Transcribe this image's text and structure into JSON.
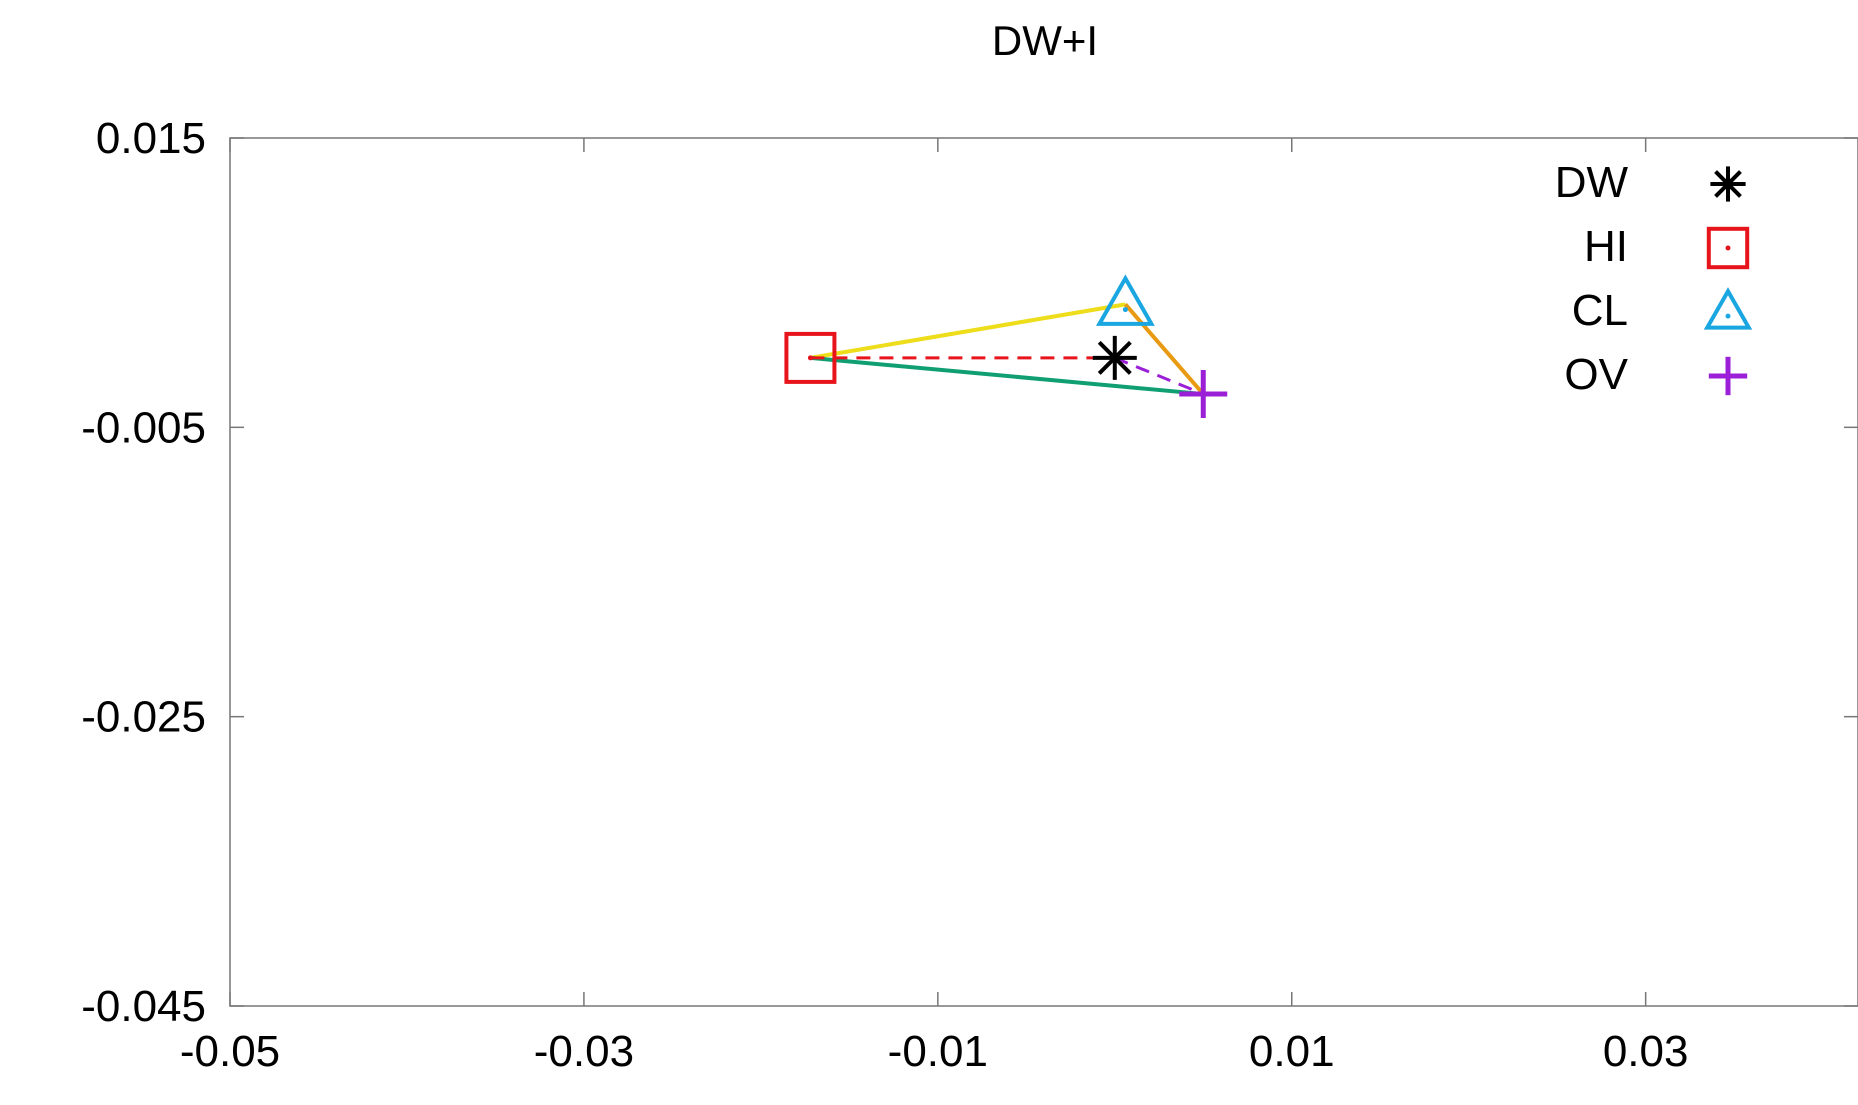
{
  "chart_data": {
    "type": "scatter",
    "title": "DW+I",
    "xlabel": "",
    "ylabel": "",
    "xlim": [
      -0.05,
      0.042
    ],
    "ylim": [
      -0.045,
      0.015
    ],
    "xticks": [
      -0.05,
      -0.03,
      -0.01,
      0.01,
      0.03
    ],
    "xtick_labels": [
      "-0.05",
      "-0.03",
      "-0.01",
      "0.01",
      "0.03"
    ],
    "yticks": [
      0.015,
      -0.005,
      -0.025,
      -0.045
    ],
    "ytick_labels": [
      "0.015",
      "-0.005",
      "-0.025",
      "-0.045"
    ],
    "grid": false,
    "legend_position": "top-right",
    "series": [
      {
        "name": "DW",
        "marker": "asterisk",
        "color": "#000000",
        "x": 0.0,
        "y": -0.0002
      },
      {
        "name": "HI",
        "marker": "square",
        "color": "#e8141c",
        "x": -0.0172,
        "y": -0.0002
      },
      {
        "name": "CL",
        "marker": "triangle",
        "color": "#1aa6e0",
        "x": 0.0006,
        "y": 0.0035
      },
      {
        "name": "OV",
        "marker": "plus",
        "color": "#9b1fd6",
        "x": 0.005,
        "y": -0.0027
      }
    ],
    "connectors": [
      {
        "from": "HI",
        "to": "CL",
        "color": "#eedd1a",
        "style": "solid"
      },
      {
        "from": "HI",
        "to": "OV",
        "color": "#0f9f72",
        "style": "solid"
      },
      {
        "from": "CL",
        "to": "OV",
        "color": "#e89a12",
        "style": "solid"
      },
      {
        "from": "HI",
        "to": "DW",
        "color": "#e8141c",
        "style": "dashed"
      },
      {
        "from": "DW",
        "to": "OV",
        "color": "#9b1fd6",
        "style": "dashed"
      }
    ]
  }
}
